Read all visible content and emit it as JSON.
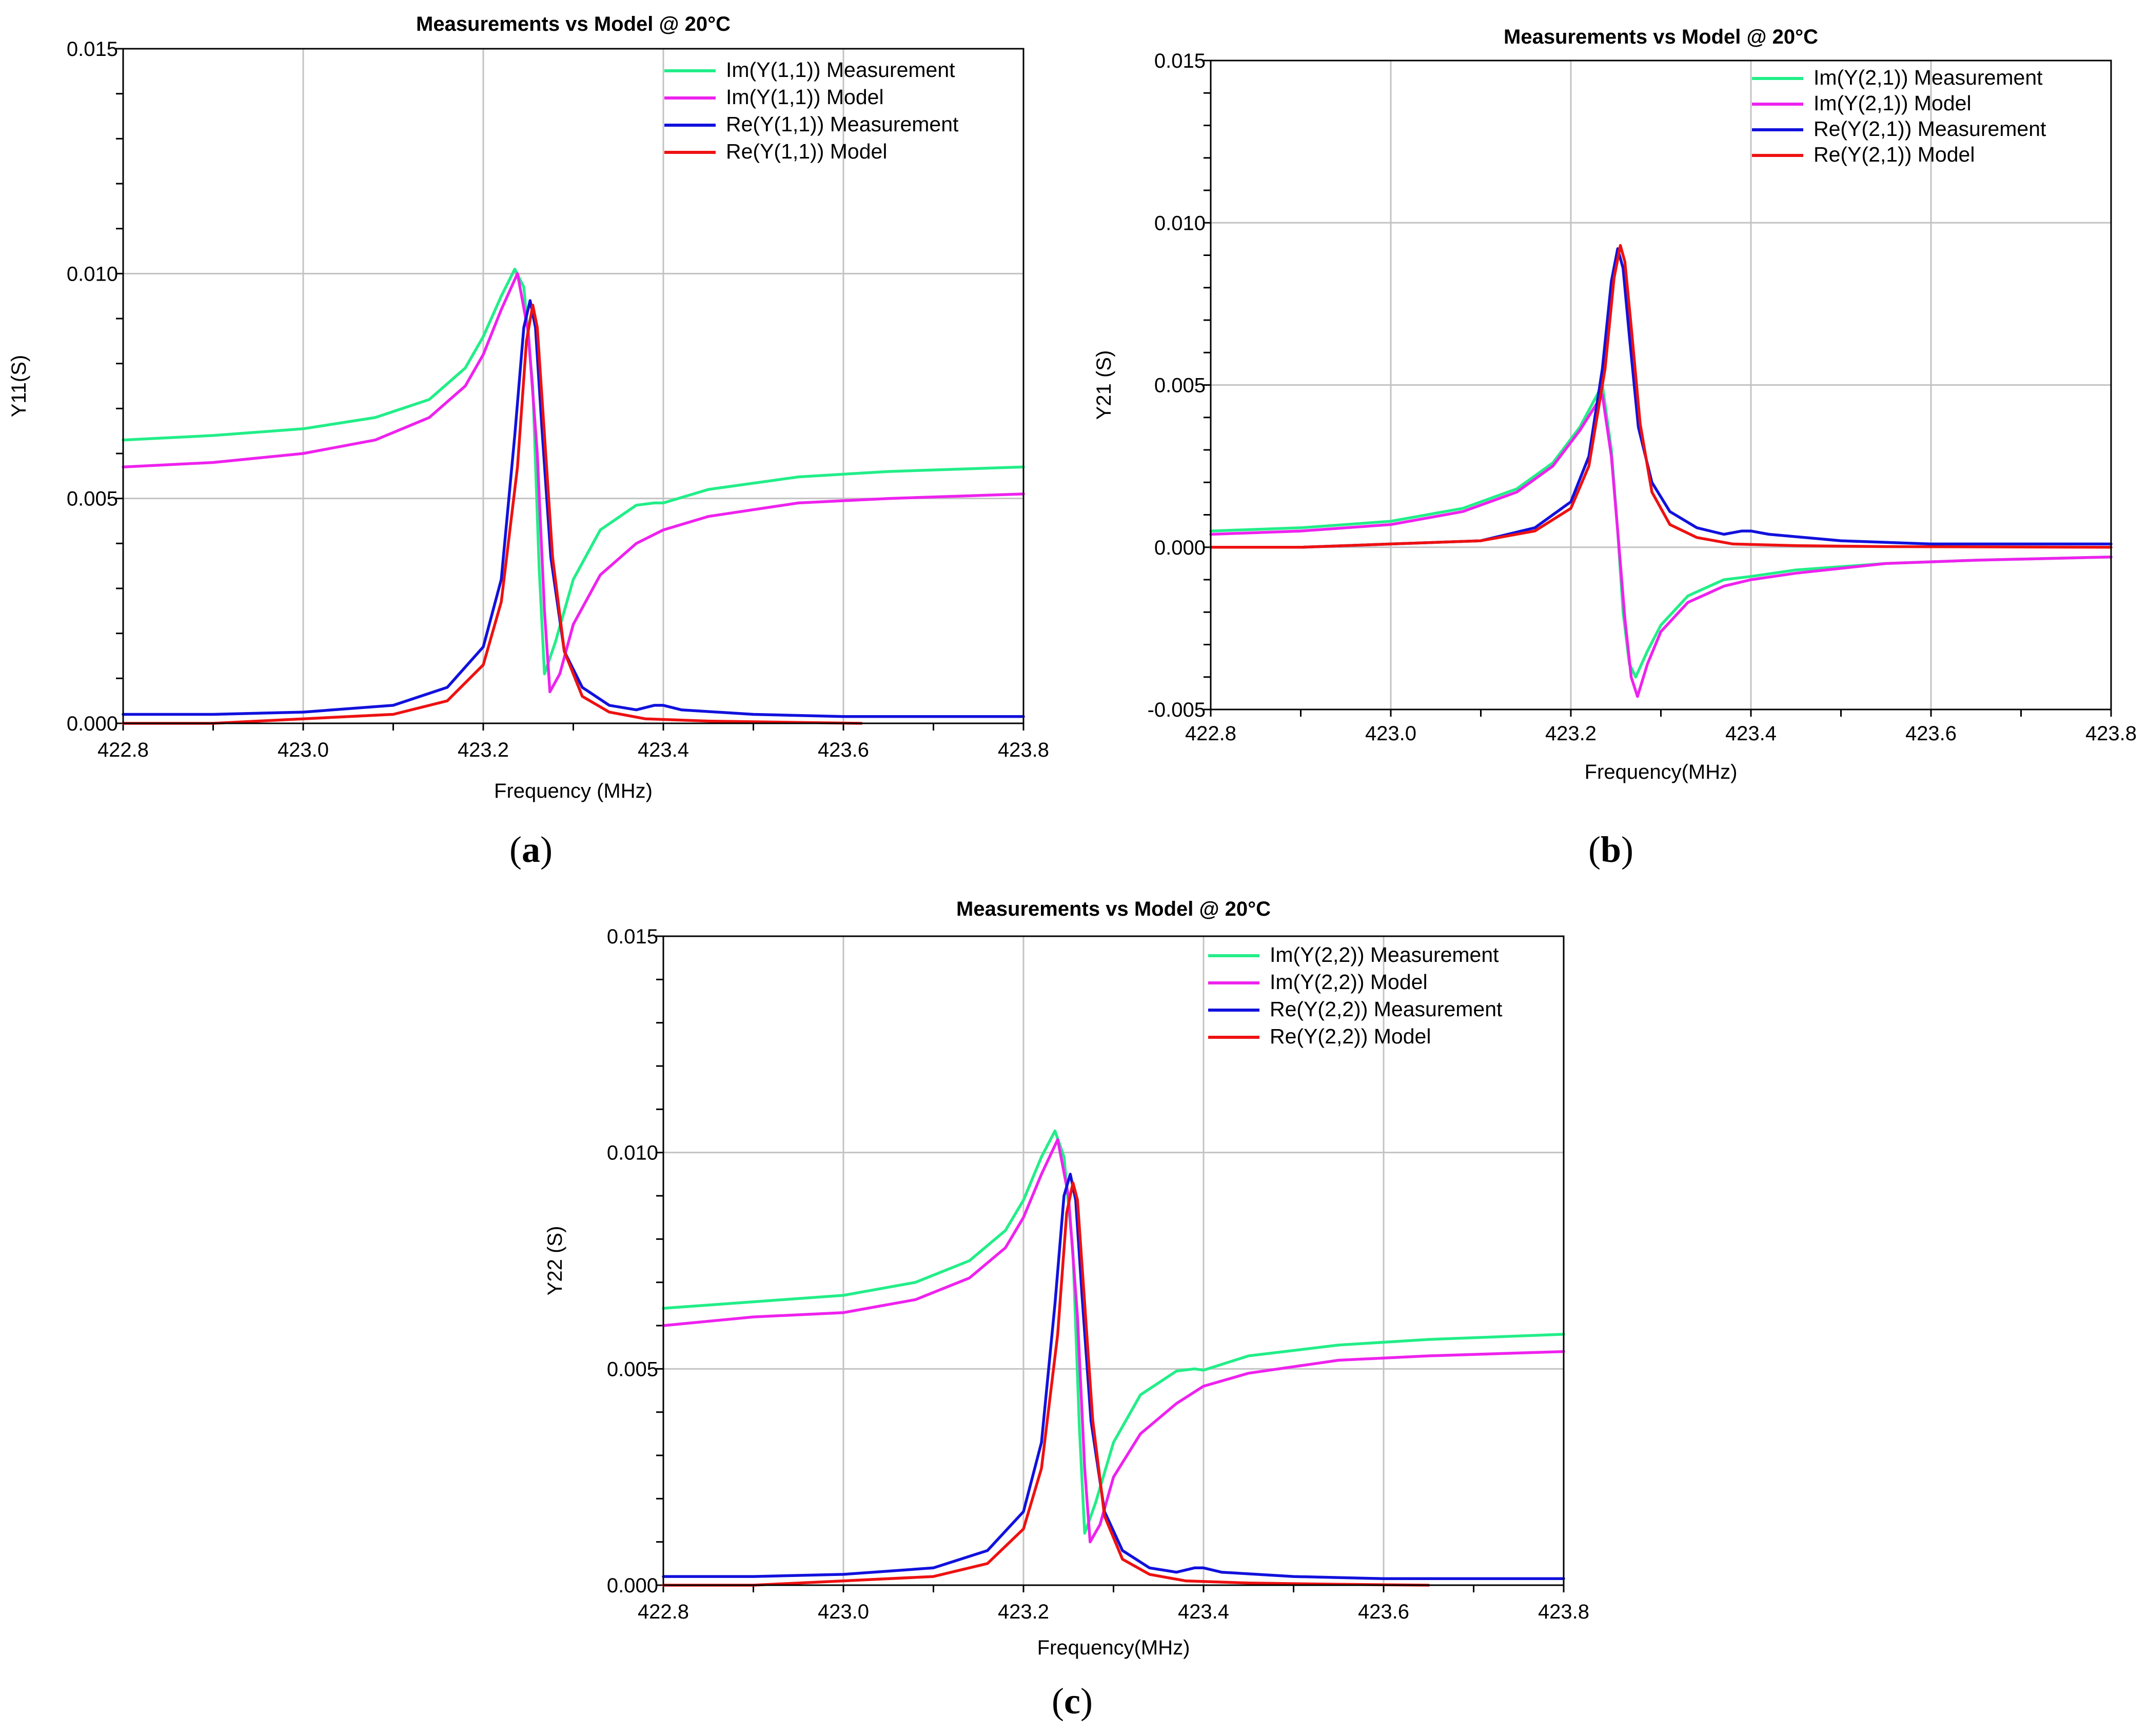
{
  "figure": {
    "panel_labels": [
      "a",
      "b",
      "c"
    ]
  },
  "colors": {
    "im_measurement": "#22ee88",
    "im_model": "#ee22ee",
    "re_measurement": "#1111dd",
    "re_model": "#ee1111",
    "grid": "#c3c3c3"
  },
  "chart_data": [
    {
      "type": "line",
      "title": "Measurements vs Model @ 20°C",
      "xlabel": "Frequency (MHz)",
      "ylabel": "Y11(S)",
      "xlim": [
        422.8,
        423.8
      ],
      "ylim": [
        0.0,
        0.015
      ],
      "xticks": [
        "422.8",
        "423.0",
        "423.2",
        "423.4",
        "423.6",
        "423.8"
      ],
      "yticks": [
        "0.000",
        "0.005",
        "0.010",
        "0.015"
      ],
      "grid": true,
      "legend_position": "top-right",
      "series": [
        {
          "name": "Im(Y(1,1)) Measurement",
          "color_key": "im_measurement",
          "x": [
            422.8,
            422.9,
            423.0,
            423.08,
            423.14,
            423.18,
            423.2,
            423.22,
            423.235,
            423.245,
            423.255,
            423.262,
            423.268,
            423.28,
            423.3,
            423.33,
            423.37,
            423.39,
            423.4,
            423.45,
            423.55,
            423.65,
            423.8
          ],
          "y": [
            0.0063,
            0.0064,
            0.00655,
            0.0068,
            0.0072,
            0.0079,
            0.0086,
            0.0095,
            0.0101,
            0.0097,
            0.0075,
            0.0035,
            0.0011,
            0.0018,
            0.0032,
            0.0043,
            0.00485,
            0.0049,
            0.0049,
            0.0052,
            0.00548,
            0.0056,
            0.0057
          ]
        },
        {
          "name": "Im(Y(1,1)) Model",
          "color_key": "im_model",
          "x": [
            422.8,
            422.9,
            423.0,
            423.08,
            423.14,
            423.18,
            423.2,
            423.22,
            423.238,
            423.25,
            423.26,
            423.268,
            423.274,
            423.285,
            423.3,
            423.33,
            423.37,
            423.4,
            423.45,
            423.55,
            423.65,
            423.8
          ],
          "y": [
            0.0057,
            0.0058,
            0.006,
            0.0063,
            0.0068,
            0.0075,
            0.0082,
            0.0092,
            0.01,
            0.0087,
            0.006,
            0.0025,
            0.0007,
            0.0011,
            0.0022,
            0.0033,
            0.004,
            0.0043,
            0.0046,
            0.0049,
            0.005,
            0.0051
          ]
        },
        {
          "name": "Re(Y(1,1)) Measurement",
          "color_key": "re_measurement",
          "x": [
            422.8,
            422.9,
            423.0,
            423.1,
            423.16,
            423.2,
            423.22,
            423.235,
            423.245,
            423.252,
            423.258,
            423.265,
            423.275,
            423.29,
            423.31,
            423.34,
            423.37,
            423.39,
            423.4,
            423.42,
            423.5,
            423.6,
            423.8
          ],
          "y": [
            0.0002,
            0.0002,
            0.00025,
            0.0004,
            0.0008,
            0.0017,
            0.0032,
            0.0064,
            0.0088,
            0.0094,
            0.0088,
            0.0066,
            0.0037,
            0.0016,
            0.0008,
            0.0004,
            0.0003,
            0.0004,
            0.0004,
            0.0003,
            0.0002,
            0.00015,
            0.00015
          ]
        },
        {
          "name": "Re(Y(1,1)) Model",
          "color_key": "re_model",
          "x": [
            422.8,
            422.9,
            423.0,
            423.1,
            423.16,
            423.2,
            423.22,
            423.238,
            423.248,
            423.255,
            423.26,
            423.267,
            423.277,
            423.29,
            423.31,
            423.34,
            423.38,
            423.45,
            423.55,
            423.62
          ],
          "y": [
            0.0,
            0.0,
            0.0001,
            0.0002,
            0.0005,
            0.0013,
            0.0027,
            0.0057,
            0.0085,
            0.0093,
            0.0088,
            0.0067,
            0.0037,
            0.0016,
            0.0006,
            0.00025,
            0.0001,
            5e-05,
            2e-05,
            0.0
          ]
        }
      ]
    },
    {
      "type": "line",
      "title": "Measurements vs Model @ 20°C",
      "xlabel": "Frequency(MHz)",
      "ylabel": "Y21 (S)",
      "xlim": [
        422.8,
        423.8
      ],
      "ylim": [
        -0.005,
        0.015
      ],
      "xticks": [
        "422.8",
        "423.0",
        "423.2",
        "423.4",
        "423.6",
        "423.8"
      ],
      "yticks": [
        "-0.005",
        "0.000",
        "0.005",
        "0.010",
        "0.015"
      ],
      "grid": true,
      "legend_position": "top-right",
      "series": [
        {
          "name": "Im(Y(2,1)) Measurement",
          "color_key": "im_measurement",
          "x": [
            422.8,
            422.9,
            423.0,
            423.08,
            423.14,
            423.18,
            423.21,
            423.235,
            423.245,
            423.252,
            423.258,
            423.265,
            423.272,
            423.285,
            423.3,
            423.33,
            423.37,
            423.4,
            423.45,
            423.55,
            423.65,
            423.8
          ],
          "y": [
            0.0005,
            0.0006,
            0.0008,
            0.0012,
            0.0018,
            0.0026,
            0.0037,
            0.005,
            0.003,
            0.0005,
            -0.002,
            -0.0036,
            -0.004,
            -0.0032,
            -0.0024,
            -0.0015,
            -0.001,
            -0.0009,
            -0.0007,
            -0.0005,
            -0.0004,
            -0.0003
          ]
        },
        {
          "name": "Im(Y(2,1)) Model",
          "color_key": "im_model",
          "x": [
            422.8,
            422.9,
            423.0,
            423.08,
            423.14,
            423.18,
            423.21,
            423.235,
            423.245,
            423.252,
            423.26,
            423.267,
            423.274,
            423.285,
            423.3,
            423.33,
            423.37,
            423.4,
            423.45,
            423.55,
            423.65,
            423.8
          ],
          "y": [
            0.0004,
            0.0005,
            0.0007,
            0.0011,
            0.0017,
            0.0025,
            0.0036,
            0.0047,
            0.0028,
            0.0005,
            -0.0022,
            -0.004,
            -0.0046,
            -0.0036,
            -0.0026,
            -0.0017,
            -0.0012,
            -0.001,
            -0.0008,
            -0.0005,
            -0.0004,
            -0.0003
          ]
        },
        {
          "name": "Re(Y(2,1)) Measurement",
          "color_key": "re_measurement",
          "x": [
            422.8,
            422.9,
            423.0,
            423.1,
            423.16,
            423.2,
            423.22,
            423.235,
            423.245,
            423.252,
            423.258,
            423.265,
            423.275,
            423.29,
            423.31,
            423.34,
            423.37,
            423.39,
            423.4,
            423.42,
            423.5,
            423.6,
            423.8
          ],
          "y": [
            0.0,
            0.0,
            0.0001,
            0.0002,
            0.0006,
            0.0014,
            0.0028,
            0.0055,
            0.0082,
            0.0092,
            0.0086,
            0.0065,
            0.0037,
            0.002,
            0.0011,
            0.0006,
            0.0004,
            0.0005,
            0.0005,
            0.0004,
            0.0002,
            0.0001,
            0.0001
          ]
        },
        {
          "name": "Re(Y(2,1)) Model",
          "color_key": "re_model",
          "x": [
            422.8,
            422.9,
            423.0,
            423.1,
            423.16,
            423.2,
            423.22,
            423.238,
            423.248,
            423.255,
            423.26,
            423.267,
            423.277,
            423.29,
            423.31,
            423.34,
            423.38,
            423.45,
            423.55,
            423.8
          ],
          "y": [
            0.0,
            0.0,
            0.0001,
            0.0002,
            0.0005,
            0.0012,
            0.0025,
            0.0055,
            0.0083,
            0.0093,
            0.0088,
            0.0068,
            0.0038,
            0.0017,
            0.0007,
            0.0003,
            0.0001,
            5e-05,
            2e-05,
            0.0
          ]
        }
      ]
    },
    {
      "type": "line",
      "title": "Measurements vs Model @ 20°C",
      "xlabel": "Frequency(MHz)",
      "ylabel": "Y22 (S)",
      "xlim": [
        422.8,
        423.8
      ],
      "ylim": [
        0.0,
        0.015
      ],
      "xticks": [
        "422.8",
        "423.0",
        "423.2",
        "423.4",
        "423.6",
        "423.8"
      ],
      "yticks": [
        "0.000",
        "0.005",
        "0.010",
        "0.015"
      ],
      "grid": true,
      "legend_position": "top-right",
      "series": [
        {
          "name": "Im(Y(2,2)) Measurement",
          "color_key": "im_measurement",
          "x": [
            422.8,
            422.9,
            423.0,
            423.08,
            423.14,
            423.18,
            423.2,
            423.22,
            423.235,
            423.245,
            423.255,
            423.262,
            423.268,
            423.28,
            423.3,
            423.33,
            423.37,
            423.39,
            423.4,
            423.45,
            423.55,
            423.65,
            423.8
          ],
          "y": [
            0.0064,
            0.00655,
            0.0067,
            0.007,
            0.0075,
            0.0082,
            0.0089,
            0.0099,
            0.0105,
            0.0099,
            0.0077,
            0.0037,
            0.0012,
            0.0019,
            0.0033,
            0.0044,
            0.00495,
            0.005,
            0.00497,
            0.0053,
            0.00555,
            0.00568,
            0.0058
          ]
        },
        {
          "name": "Im(Y(2,2)) Model",
          "color_key": "im_model",
          "x": [
            422.8,
            422.9,
            423.0,
            423.08,
            423.14,
            423.18,
            423.2,
            423.22,
            423.238,
            423.25,
            423.26,
            423.268,
            423.274,
            423.285,
            423.3,
            423.33,
            423.37,
            423.4,
            423.45,
            423.55,
            423.65,
            423.8
          ],
          "y": [
            0.006,
            0.0062,
            0.0063,
            0.0066,
            0.0071,
            0.0078,
            0.0085,
            0.0095,
            0.0103,
            0.009,
            0.0062,
            0.0027,
            0.001,
            0.0014,
            0.0025,
            0.0035,
            0.0042,
            0.0046,
            0.0049,
            0.0052,
            0.0053,
            0.0054
          ]
        },
        {
          "name": "Re(Y(2,2)) Measurement",
          "color_key": "re_measurement",
          "x": [
            422.8,
            422.9,
            423.0,
            423.1,
            423.16,
            423.2,
            423.22,
            423.235,
            423.245,
            423.252,
            423.258,
            423.265,
            423.275,
            423.29,
            423.31,
            423.34,
            423.37,
            423.39,
            423.4,
            423.42,
            423.5,
            423.6,
            423.8
          ],
          "y": [
            0.0002,
            0.0002,
            0.00025,
            0.0004,
            0.0008,
            0.0017,
            0.0033,
            0.0065,
            0.009,
            0.0095,
            0.0089,
            0.0067,
            0.0038,
            0.0017,
            0.0008,
            0.0004,
            0.0003,
            0.0004,
            0.0004,
            0.0003,
            0.0002,
            0.00015,
            0.00015
          ]
        },
        {
          "name": "Re(Y(2,2)) Model",
          "color_key": "re_model",
          "x": [
            422.8,
            422.9,
            423.0,
            423.1,
            423.16,
            423.2,
            423.22,
            423.238,
            423.248,
            423.255,
            423.26,
            423.267,
            423.277,
            423.29,
            423.31,
            423.34,
            423.38,
            423.45,
            423.55,
            423.65
          ],
          "y": [
            0.0,
            0.0,
            0.0001,
            0.0002,
            0.0005,
            0.0013,
            0.0027,
            0.0058,
            0.0086,
            0.0093,
            0.0089,
            0.0068,
            0.0038,
            0.0016,
            0.0006,
            0.00025,
            0.0001,
            5e-05,
            2e-05,
            0.0
          ]
        }
      ]
    }
  ]
}
